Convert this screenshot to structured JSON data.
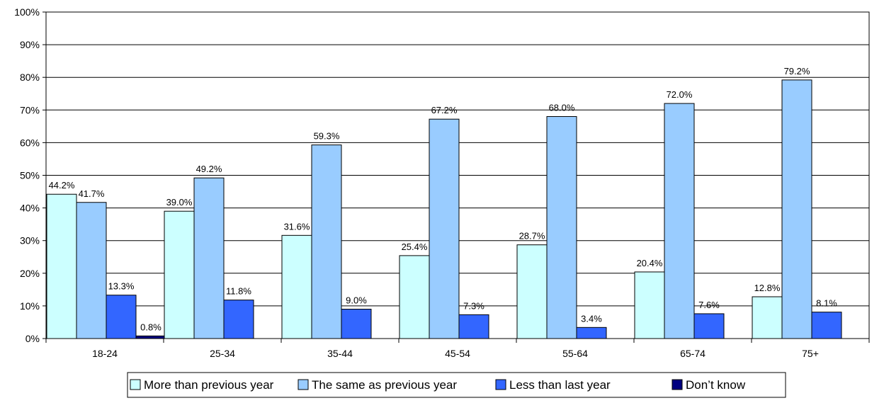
{
  "chart_data": {
    "type": "bar",
    "categories": [
      "18-24",
      "25-34",
      "35-44",
      "45-54",
      "55-64",
      "65-74",
      "75+"
    ],
    "series": [
      {
        "name": "More than previous year",
        "color": "#ccffff",
        "values": [
          44.2,
          39.0,
          31.6,
          25.4,
          28.7,
          20.4,
          12.8
        ],
        "labels": [
          "44.2%",
          "39.0%",
          "31.6%",
          "25.4%",
          "28.7%",
          "20.4%",
          "12.8%"
        ]
      },
      {
        "name": "The same as previous year",
        "color": "#99ccff",
        "values": [
          41.7,
          49.2,
          59.3,
          67.2,
          68.0,
          72.0,
          79.2
        ],
        "labels": [
          "41.7%",
          "49.2%",
          "59.3%",
          "67.2%",
          "68.0%",
          "72.0%",
          "79.2%"
        ]
      },
      {
        "name": "Less than last year",
        "color": "#3366ff",
        "values": [
          13.3,
          11.8,
          9.0,
          7.3,
          3.4,
          7.6,
          8.1
        ],
        "labels": [
          "13.3%",
          "11.8%",
          "9.0%",
          "7.3%",
          "3.4%",
          "7.6%",
          "8.1%"
        ]
      },
      {
        "name": "Don’t know",
        "color": "#000080",
        "values": [
          0.8,
          0,
          0,
          0,
          0,
          0,
          0
        ],
        "labels": [
          "0.8%",
          null,
          null,
          null,
          null,
          null,
          null
        ]
      }
    ],
    "yticks": [
      "0%",
      "10%",
      "20%",
      "30%",
      "40%",
      "50%",
      "60%",
      "70%",
      "80%",
      "90%",
      "100%"
    ],
    "ylim": [
      0,
      100
    ],
    "grid": true,
    "legend_position": "bottom"
  }
}
